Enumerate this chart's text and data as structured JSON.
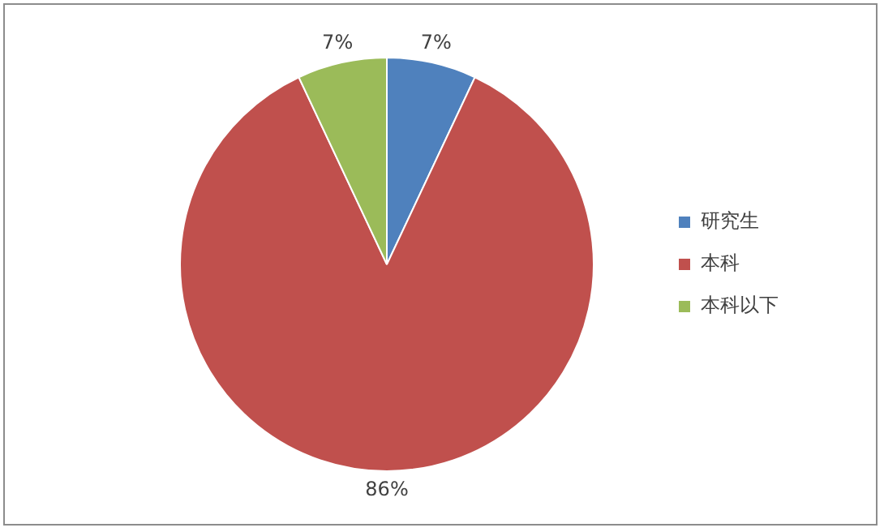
{
  "chart_data": {
    "type": "pie",
    "categories": [
      "研究生",
      "本科",
      "本科以下"
    ],
    "values": [
      7,
      86,
      7
    ],
    "colors": [
      "#4f81bd",
      "#c0504d",
      "#9bbb59"
    ],
    "value_labels": [
      "7%",
      "86%",
      "7%"
    ],
    "legend": "right"
  }
}
